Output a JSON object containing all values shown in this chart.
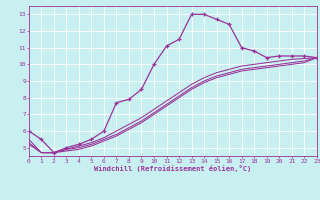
{
  "xlabel": "Windchill (Refroidissement éolien,°C)",
  "bg_color": "#c8f0f0",
  "line_color": "#993399",
  "grid_color": "#ffffff",
  "xlim": [
    0,
    23
  ],
  "ylim": [
    4.5,
    13.5
  ],
  "xticks": [
    0,
    1,
    2,
    3,
    4,
    5,
    6,
    7,
    8,
    9,
    10,
    11,
    12,
    13,
    14,
    15,
    16,
    17,
    18,
    19,
    20,
    21,
    22,
    23
  ],
  "yticks": [
    5,
    6,
    7,
    8,
    9,
    10,
    11,
    12,
    13
  ],
  "line1_x": [
    0,
    1,
    2,
    3,
    4,
    5,
    6,
    7,
    8,
    9,
    10,
    11,
    12,
    13,
    14,
    15,
    16,
    17,
    18,
    19,
    20,
    21,
    22,
    23
  ],
  "line1_y": [
    6.0,
    5.5,
    4.7,
    5.0,
    5.2,
    5.5,
    6.0,
    7.7,
    7.9,
    8.5,
    10.0,
    11.1,
    11.5,
    13.0,
    13.0,
    12.7,
    12.4,
    11.0,
    10.8,
    10.4,
    10.5,
    10.5,
    10.5,
    10.4
  ],
  "line2_x": [
    0,
    1,
    2,
    3,
    4,
    5,
    6,
    7,
    8,
    9,
    10,
    11,
    12,
    13,
    14,
    15,
    16,
    17,
    18,
    19,
    20,
    21,
    22,
    23
  ],
  "line2_y": [
    5.5,
    4.7,
    4.7,
    4.9,
    5.1,
    5.3,
    5.6,
    6.0,
    6.4,
    6.8,
    7.3,
    7.8,
    8.3,
    8.8,
    9.2,
    9.5,
    9.7,
    9.9,
    10.0,
    10.1,
    10.2,
    10.3,
    10.35,
    10.4
  ],
  "line3_x": [
    0,
    1,
    2,
    3,
    4,
    5,
    6,
    7,
    8,
    9,
    10,
    11,
    12,
    13,
    14,
    15,
    16,
    17,
    18,
    19,
    20,
    21,
    22,
    23
  ],
  "line3_y": [
    5.3,
    4.7,
    4.7,
    4.9,
    5.0,
    5.2,
    5.5,
    5.8,
    6.2,
    6.6,
    7.1,
    7.6,
    8.1,
    8.6,
    9.0,
    9.3,
    9.5,
    9.7,
    9.8,
    9.9,
    10.0,
    10.1,
    10.2,
    10.4
  ],
  "line4_x": [
    0,
    1,
    2,
    3,
    4,
    5,
    6,
    7,
    8,
    9,
    10,
    11,
    12,
    13,
    14,
    15,
    16,
    17,
    18,
    19,
    20,
    21,
    22,
    23
  ],
  "line4_y": [
    5.2,
    4.7,
    4.7,
    4.8,
    4.9,
    5.1,
    5.4,
    5.7,
    6.1,
    6.5,
    7.0,
    7.5,
    8.0,
    8.5,
    8.9,
    9.2,
    9.4,
    9.6,
    9.7,
    9.8,
    9.9,
    10.0,
    10.1,
    10.4
  ]
}
